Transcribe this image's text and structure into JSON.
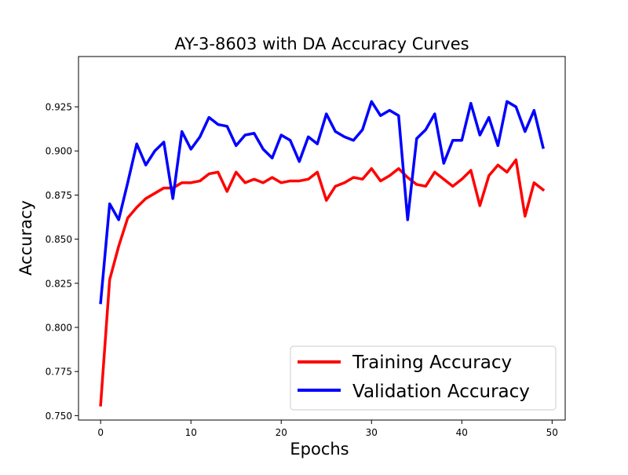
{
  "chart_data": {
    "type": "line",
    "title": "AY-3-8603 with DA Accuracy Curves",
    "xlabel": "Epochs",
    "ylabel": "Accuracy",
    "xlim": [
      -2.45,
      51.45
    ],
    "ylim": [
      0.7475,
      0.9535
    ],
    "xticks": [
      0,
      10,
      20,
      30,
      40,
      50
    ],
    "xtick_labels": [
      "0",
      "10",
      "20",
      "30",
      "40",
      "50"
    ],
    "yticks": [
      0.75,
      0.775,
      0.8,
      0.825,
      0.85,
      0.875,
      0.9,
      0.925
    ],
    "ytick_labels": [
      "0.750",
      "0.775",
      "0.800",
      "0.825",
      "0.850",
      "0.875",
      "0.900",
      "0.925"
    ],
    "grid": false,
    "legend_position": "lower-right",
    "x": [
      0,
      1,
      2,
      3,
      4,
      5,
      6,
      7,
      8,
      9,
      10,
      11,
      12,
      13,
      14,
      15,
      16,
      17,
      18,
      19,
      20,
      21,
      22,
      23,
      24,
      25,
      26,
      27,
      28,
      29,
      30,
      31,
      32,
      33,
      34,
      35,
      36,
      37,
      38,
      39,
      40,
      41,
      42,
      43,
      44,
      45,
      46,
      47,
      48,
      49
    ],
    "series": [
      {
        "name": "Training Accuracy",
        "color": "#ff0000",
        "values": [
          0.756,
          0.827,
          0.846,
          0.862,
          0.868,
          0.873,
          0.876,
          0.879,
          0.879,
          0.882,
          0.882,
          0.883,
          0.887,
          0.888,
          0.877,
          0.888,
          0.882,
          0.884,
          0.882,
          0.885,
          0.882,
          0.883,
          0.883,
          0.884,
          0.888,
          0.872,
          0.88,
          0.882,
          0.885,
          0.884,
          0.89,
          0.883,
          0.886,
          0.89,
          0.885,
          0.881,
          0.88,
          0.888,
          0.884,
          0.88,
          0.884,
          0.889,
          0.869,
          0.886,
          0.892,
          0.888,
          0.895,
          0.863,
          0.882,
          0.878
        ]
      },
      {
        "name": "Validation Accuracy",
        "color": "#0000ff",
        "values": [
          0.814,
          0.87,
          0.861,
          0.882,
          0.904,
          0.892,
          0.9,
          0.905,
          0.873,
          0.911,
          0.901,
          0.908,
          0.919,
          0.915,
          0.914,
          0.903,
          0.909,
          0.91,
          0.901,
          0.896,
          0.909,
          0.906,
          0.894,
          0.908,
          0.904,
          0.921,
          0.911,
          0.908,
          0.906,
          0.912,
          0.928,
          0.92,
          0.923,
          0.92,
          0.861,
          0.907,
          0.912,
          0.921,
          0.893,
          0.906,
          0.906,
          0.927,
          0.909,
          0.919,
          0.903,
          0.928,
          0.925,
          0.911,
          0.923,
          0.902
        ]
      }
    ]
  }
}
